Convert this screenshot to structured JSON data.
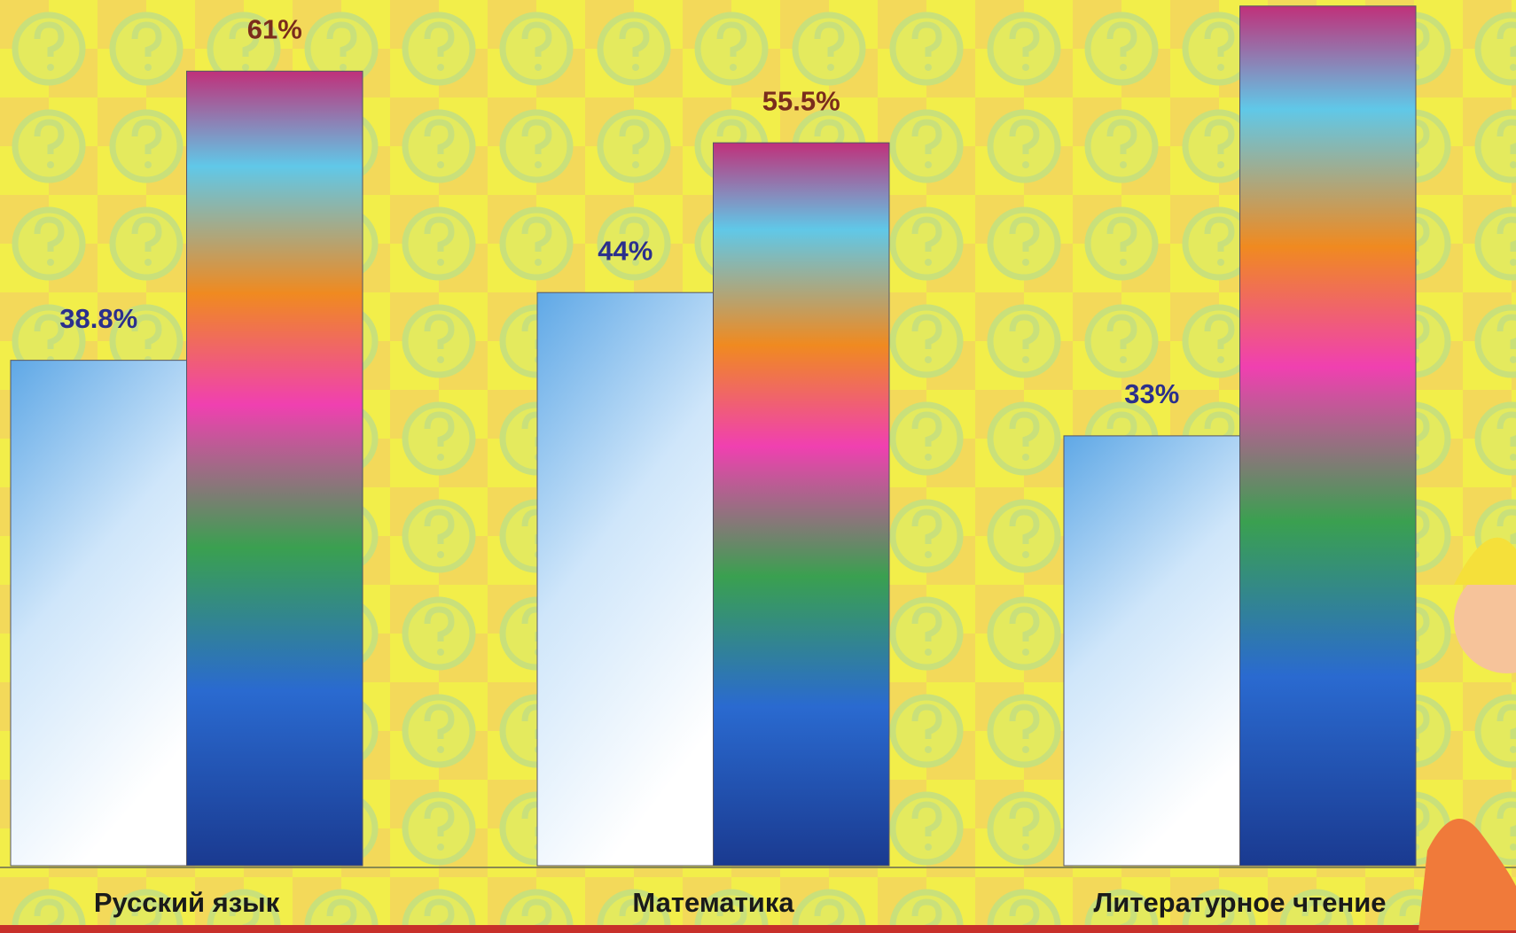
{
  "chart_data": {
    "type": "bar",
    "categories": [
      "Русский язык",
      "Математика",
      "Литературное чтение"
    ],
    "series": [
      {
        "color": "#5fa8e6",
        "label_color": "#2b2f8c",
        "values": [
          38.8,
          44,
          33
        ],
        "value_labels": [
          "38.8%",
          "44%",
          "33%"
        ]
      },
      {
        "color": "#e2409c",
        "label_color": "#7a2c1c",
        "values": [
          61,
          55.5,
          66
        ],
        "value_labels": [
          "61%",
          "55.5%",
          null
        ]
      }
    ]
  }
}
